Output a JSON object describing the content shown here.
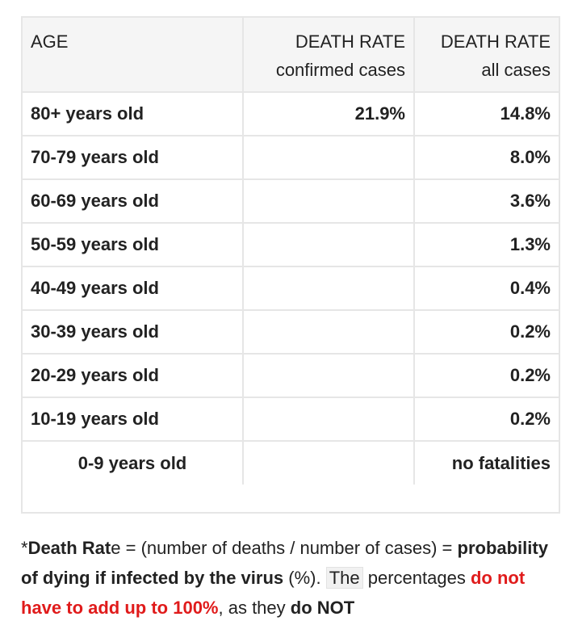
{
  "table": {
    "headers": {
      "age": "AGE",
      "confirmed_line1": "DEATH RATE",
      "confirmed_line2": "confirmed cases",
      "all_line1": "DEATH RATE",
      "all_line2": "all cases"
    },
    "rows": [
      {
        "age": "80+ years old",
        "confirmed": "21.9%",
        "all": "14.8%"
      },
      {
        "age": "70-79 years old",
        "confirmed": "",
        "all": "8.0%"
      },
      {
        "age": "60-69 years old",
        "confirmed": "",
        "all": "3.6%"
      },
      {
        "age": "50-59 years old",
        "confirmed": "",
        "all": "1.3%"
      },
      {
        "age": "40-49 years old",
        "confirmed": "",
        "all": "0.4%"
      },
      {
        "age": "30-39 years old",
        "confirmed": "",
        "all": "0.2%"
      },
      {
        "age": "20-29 years old",
        "confirmed": "",
        "all": "0.2%"
      },
      {
        "age": "10-19 years old",
        "confirmed": "",
        "all": "0.2%"
      },
      {
        "age": "0-9 years old",
        "confirmed": "",
        "all": "no fatalities"
      }
    ]
  },
  "footnote": {
    "star": "*",
    "term_bold": "Death Rat",
    "term_rest": "e",
    "formula": " = (number of deaths / number of cases) = ",
    "probability_bold": "probability of dying if infected by the virus",
    "percent_unit": " (%). ",
    "the": "The",
    "percentages": " percentages ",
    "not_add_up": "do not have to add up to 100%",
    "as_they": ", as they ",
    "do_not": "do NOT"
  },
  "colors": {
    "accent_red": "#e01b1b",
    "header_bg": "#f5f5f5",
    "border": "#e6e6e6",
    "text": "#222222"
  }
}
